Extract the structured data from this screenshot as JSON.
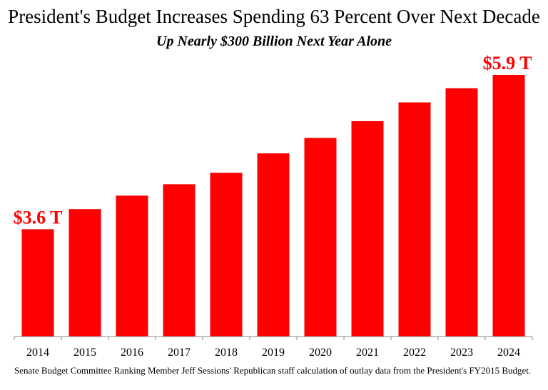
{
  "chart_data": {
    "type": "bar",
    "title": "President's Budget Increases Spending 63 Percent Over Next Decade",
    "subtitle": "Up Nearly $300 Billion Next Year Alone",
    "xlabel": "",
    "ylabel": "",
    "categories": [
      "2014",
      "2015",
      "2016",
      "2017",
      "2018",
      "2019",
      "2020",
      "2021",
      "2022",
      "2023",
      "2024"
    ],
    "values": [
      3.6,
      3.9,
      4.1,
      4.27,
      4.44,
      4.73,
      4.96,
      5.21,
      5.49,
      5.7,
      5.9
    ],
    "unit": "trillions of dollars",
    "ylim": [
      2.0,
      6.0
    ],
    "grid": false,
    "legend": "none",
    "bar_color": "#ff0000",
    "annotations": [
      {
        "category": "2014",
        "text": "$3.6 T",
        "color": "#ff0000"
      },
      {
        "category": "2024",
        "text": "$5.9 T",
        "color": "#ff0000"
      }
    ],
    "source": "Senate Budget Committee Ranking Member Jeff Sessions' Republican staff calculation of outlay data from the President's FY2015 Budget."
  }
}
